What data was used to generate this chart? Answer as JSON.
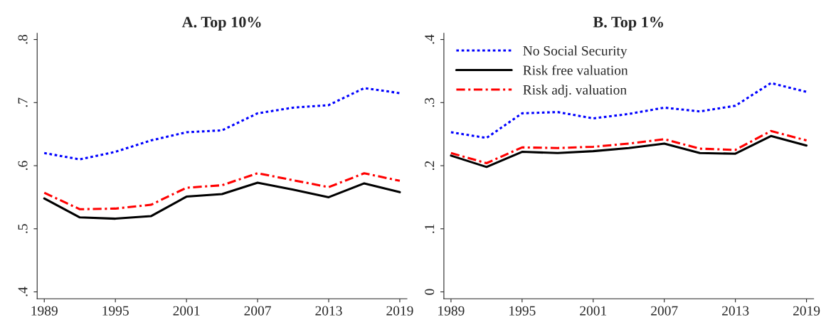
{
  "chart_data": [
    {
      "type": "line",
      "title": "A. Top 10%",
      "x": [
        1989,
        1992,
        1995,
        1998,
        2001,
        2004,
        2007,
        2010,
        2013,
        2016,
        2019
      ],
      "xlim": [
        1988.4,
        2019.6
      ],
      "xticks": [
        1989,
        1995,
        2001,
        2007,
        2013,
        2019
      ],
      "ylim": [
        0.389,
        0.81
      ],
      "yticks": [
        {
          "value": 0.4,
          "label": ".4"
        },
        {
          "value": 0.5,
          "label": ".5"
        },
        {
          "value": 0.6,
          "label": ".6"
        },
        {
          "value": 0.7,
          "label": ".7"
        },
        {
          "value": 0.8,
          "label": ".8"
        }
      ],
      "grid": false,
      "legend": false,
      "series": [
        {
          "color": "#0000ff",
          "line_style": "dotted",
          "values": [
            0.62,
            0.61,
            0.622,
            0.64,
            0.653,
            0.656,
            0.683,
            0.692,
            0.696,
            0.723,
            0.715
          ]
        },
        {
          "color": "#000000",
          "line_style": "solid",
          "values": [
            0.548,
            0.518,
            0.516,
            0.52,
            0.551,
            0.555,
            0.573,
            0.562,
            0.55,
            0.572,
            0.558
          ]
        },
        {
          "color": "#ff0000",
          "line_style": "dashdot",
          "values": [
            0.557,
            0.531,
            0.532,
            0.538,
            0.565,
            0.569,
            0.588,
            0.577,
            0.566,
            0.588,
            0.576
          ]
        }
      ]
    },
    {
      "type": "line",
      "title": "B. Top 1%",
      "x": [
        1989,
        1992,
        1995,
        1998,
        2001,
        2004,
        2007,
        2010,
        2013,
        2016,
        2019
      ],
      "xlim": [
        1988.4,
        2019.6
      ],
      "xticks": [
        1989,
        1995,
        2001,
        2007,
        2013,
        2019
      ],
      "ylim": [
        -0.011,
        0.41
      ],
      "yticks": [
        {
          "value": 0,
          "label": "0"
        },
        {
          "value": 0.1,
          "label": ".1"
        },
        {
          "value": 0.2,
          "label": ".2"
        },
        {
          "value": 0.3,
          "label": ".3"
        },
        {
          "value": 0.4,
          "label": ".4"
        }
      ],
      "grid": false,
      "legend": "top left",
      "series": [
        {
          "name": "No Social Security",
          "color": "#0000ff",
          "line_style": "dotted",
          "values": [
            0.253,
            0.244,
            0.283,
            0.285,
            0.275,
            0.282,
            0.292,
            0.286,
            0.295,
            0.331,
            0.317
          ]
        },
        {
          "name": "Risk free valuation",
          "color": "#000000",
          "line_style": "solid",
          "values": [
            0.216,
            0.198,
            0.222,
            0.22,
            0.223,
            0.228,
            0.235,
            0.22,
            0.219,
            0.247,
            0.232
          ]
        },
        {
          "name": "Risk adj. valuation",
          "color": "#ff0000",
          "line_style": "dashdot",
          "values": [
            0.22,
            0.204,
            0.229,
            0.228,
            0.23,
            0.235,
            0.242,
            0.227,
            0.225,
            0.255,
            0.24
          ]
        }
      ]
    }
  ]
}
